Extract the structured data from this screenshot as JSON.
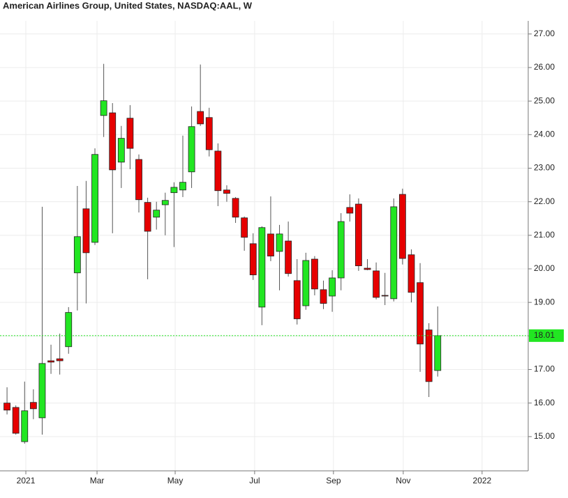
{
  "chart_data": {
    "type": "candlestick",
    "title": "American Airlines Group, United States, NASDAQ:AAL, W",
    "categories": [
      null,
      null,
      null,
      null,
      null,
      null,
      null,
      null,
      null,
      null,
      null,
      null,
      null,
      null,
      null,
      null,
      null,
      null,
      null,
      null,
      null,
      null,
      null,
      null,
      null,
      null,
      null,
      null,
      null,
      null,
      null,
      null,
      null,
      null,
      null,
      null,
      null,
      null,
      null,
      null,
      null,
      null,
      null,
      null,
      null,
      null,
      null,
      null,
      null,
      null
    ],
    "open": [
      16.0,
      15.87,
      14.85,
      16.02,
      15.56,
      17.26,
      17.32,
      17.68,
      19.88,
      21.79,
      20.79,
      24.57,
      24.65,
      23.18,
      24.49,
      23.26,
      21.98,
      21.54,
      21.91,
      22.27,
      22.35,
      22.89,
      24.69,
      24.51,
      23.51,
      22.35,
      22.1,
      21.52,
      20.75,
      18.86,
      21.04,
      20.52,
      20.83,
      19.65,
      18.9,
      20.29,
      19.38,
      19.19,
      19.73,
      21.83,
      21.93,
      20.02,
      19.94,
      19.21,
      19.11,
      22.22,
      20.42,
      19.59,
      18.18,
      16.97
    ],
    "high": [
      16.47,
      15.93,
      16.64,
      16.41,
      21.85,
      17.74,
      18.07,
      18.86,
      22.47,
      22.62,
      23.59,
      26.11,
      24.94,
      24.26,
      24.88,
      23.41,
      22.12,
      22.0,
      22.27,
      22.58,
      23.97,
      24.84,
      26.09,
      24.8,
      23.74,
      22.49,
      22.14,
      21.56,
      21.06,
      21.27,
      22.16,
      21.31,
      21.41,
      20.29,
      20.48,
      20.38,
      19.65,
      19.96,
      21.66,
      22.22,
      22.1,
      20.29,
      20.19,
      19.88,
      22.1,
      22.39,
      20.58,
      20.17,
      18.38,
      18.88
    ],
    "low": [
      15.66,
      15.06,
      14.79,
      15.52,
      15.06,
      16.87,
      16.85,
      17.47,
      18.76,
      18.97,
      20.71,
      23.93,
      21.06,
      22.41,
      22.97,
      21.68,
      19.69,
      21.17,
      21.0,
      20.65,
      22.14,
      22.41,
      24.26,
      23.35,
      21.87,
      22.0,
      21.37,
      20.54,
      19.67,
      18.32,
      20.23,
      19.36,
      19.77,
      18.34,
      18.78,
      19.21,
      18.8,
      18.72,
      19.36,
      21.41,
      19.94,
      19.96,
      19.09,
      18.92,
      19.03,
      20.13,
      19.0,
      16.93,
      16.18,
      16.79
    ],
    "close": [
      15.79,
      15.1,
      15.77,
      15.83,
      17.18,
      17.22,
      17.26,
      18.7,
      20.96,
      20.48,
      23.41,
      25.01,
      22.95,
      23.89,
      23.59,
      22.06,
      21.12,
      21.75,
      22.04,
      22.43,
      22.58,
      24.24,
      24.32,
      23.55,
      22.33,
      22.25,
      21.54,
      20.94,
      19.82,
      21.23,
      20.38,
      21.04,
      19.86,
      18.51,
      20.25,
      19.4,
      18.97,
      19.73,
      21.41,
      21.66,
      20.09,
      19.98,
      19.15,
      19.19,
      21.85,
      20.31,
      19.3,
      17.76,
      16.64,
      18.01
    ],
    "up_color": "#22e622",
    "down_color": "#e60000",
    "last_price": 18.01,
    "last_price_color": "#22e622",
    "xlim": [
      -0.8,
      59.3
    ],
    "xticks": [
      {
        "value": 2.14,
        "label": "2021"
      },
      {
        "value": 10.24,
        "label": "Mar"
      },
      {
        "value": 19.13,
        "label": "May"
      },
      {
        "value": 28.17,
        "label": "Jul"
      },
      {
        "value": 37.14,
        "label": "Sep"
      },
      {
        "value": 45.08,
        "label": "Nov"
      },
      {
        "value": 54.05,
        "label": "2022"
      }
    ],
    "ylim": [
      13.98,
      27.39
    ],
    "yticks": [
      {
        "value": 15,
        "label": "15.00"
      },
      {
        "value": 16,
        "label": "16.00"
      },
      {
        "value": 17,
        "label": "17.00"
      },
      {
        "value": 18,
        "label": "18.00"
      },
      {
        "value": 19,
        "label": "19.00"
      },
      {
        "value": 20,
        "label": "20.00"
      },
      {
        "value": 21,
        "label": "21.00"
      },
      {
        "value": 22,
        "label": "22.00"
      },
      {
        "value": 23,
        "label": "23.00"
      },
      {
        "value": 24,
        "label": "24.00"
      },
      {
        "value": 25,
        "label": "25.00"
      },
      {
        "value": 26,
        "label": "26.00"
      },
      {
        "value": 27,
        "label": "27.00"
      }
    ],
    "grid": true
  }
}
